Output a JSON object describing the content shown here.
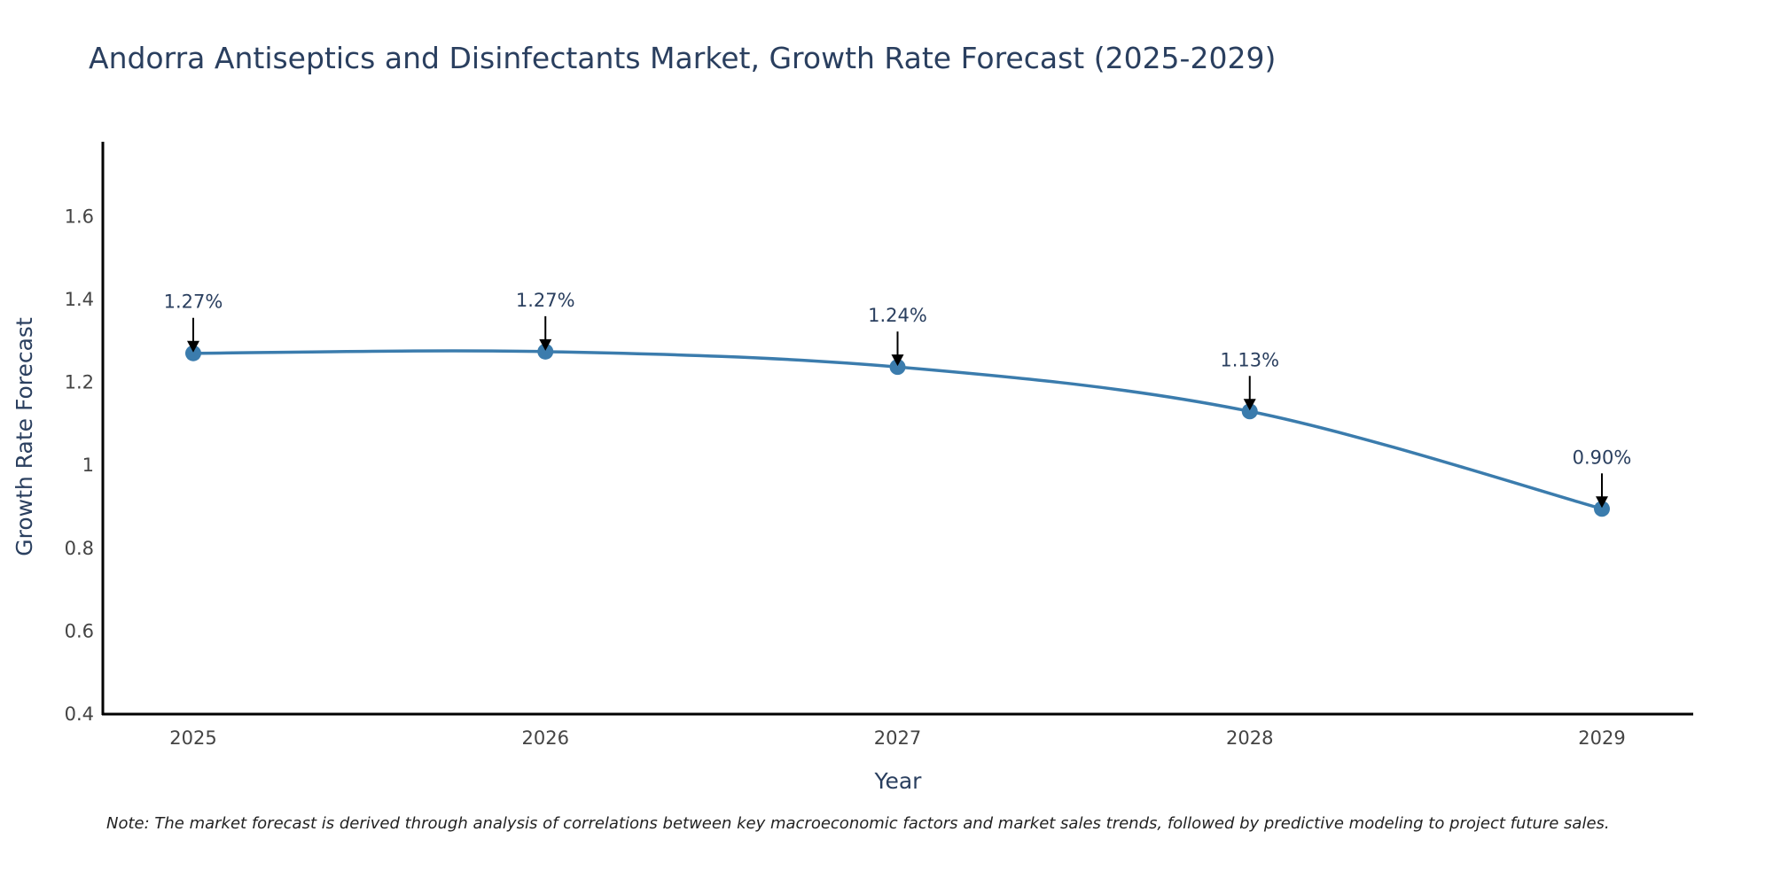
{
  "title": "Andorra Antiseptics and Disinfectants Market, Growth Rate Forecast (2025-2029)",
  "note": "Note: The market forecast is derived through analysis of correlations between key macroeconomic factors and market sales trends, followed by predictive modeling to project future sales.",
  "colors": {
    "line": "#3b7cad",
    "marker": "#3b7cad",
    "axis": "#000000",
    "text": "#2a3f5f"
  },
  "chart_data": {
    "type": "line",
    "title": "Andorra Antiseptics and Disinfectants Market, Growth Rate Forecast (2025-2029)",
    "xlabel": "Year",
    "ylabel": "Growth Rate Forecast",
    "categories": [
      "2025",
      "2026",
      "2027",
      "2028",
      "2029"
    ],
    "values": [
      1.27,
      1.274,
      1.237,
      1.13,
      0.895
    ],
    "labels": [
      "1.27%",
      "1.27%",
      "1.24%",
      "1.13%",
      "0.90%"
    ],
    "ylim": [
      0.4,
      1.78
    ],
    "yticks": [
      0.4,
      0.6,
      0.8,
      1,
      1.2,
      1.4,
      1.6
    ],
    "ytick_labels": [
      "0.4",
      "0.6",
      "0.8",
      "1",
      "1.2",
      "1.4",
      "1.6"
    ],
    "grid": false,
    "smoothing": "spline"
  }
}
